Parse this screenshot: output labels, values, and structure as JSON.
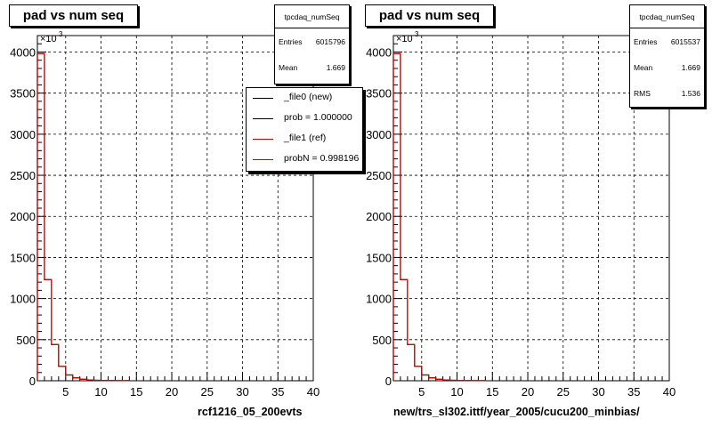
{
  "panels": [
    {
      "title": "pad vs num seq",
      "stats": {
        "name": "tpcdaq_numSeq",
        "rows": [
          {
            "label": "Entries",
            "value": "6015796"
          },
          {
            "label": "Mean",
            "value": "1.669"
          }
        ]
      },
      "legend": [
        {
          "label": "_file0 (new)",
          "color": "#000000"
        },
        {
          "label": "prob = 1.000000",
          "color": "#000000"
        },
        {
          "label": "_file1 (ref)",
          "color": "#cc0000"
        },
        {
          "label": "probN = 0.998196",
          "color": "#cc0000"
        }
      ],
      "footer": "rcf1216_05_200evts"
    },
    {
      "title": "pad vs num seq",
      "stats": {
        "name": "tpcdaq_numSeq",
        "rows": [
          {
            "label": "Entries",
            "value": "6015537"
          },
          {
            "label": "Mean",
            "value": "1.669"
          },
          {
            "label": "RMS",
            "value": "1.536"
          }
        ]
      },
      "footer": "new/trs_sl302.ittf/year_2005/cucu200_minbias/"
    }
  ],
  "chart_data": [
    {
      "type": "bar",
      "subtype": "histogram-step",
      "title": "pad vs num seq",
      "ylabel_multiplier": "×10",
      "ylabel_multiplier_exp": "3",
      "xlim": [
        1,
        40
      ],
      "ylim": [
        0,
        4200
      ],
      "xticks": [
        5,
        10,
        15,
        20,
        25,
        30,
        35,
        40
      ],
      "yticks": [
        0,
        500,
        1000,
        1500,
        2000,
        2500,
        3000,
        3500,
        4000
      ],
      "grid": true,
      "bin_edges": [
        1,
        2,
        3,
        4,
        5,
        6,
        7,
        8,
        9,
        10,
        11,
        12,
        13,
        14
      ],
      "series": [
        {
          "color": "#000000",
          "values": [
            3980,
            1230,
            440,
            175,
            70,
            35,
            18,
            10,
            6,
            4,
            3,
            2,
            1
          ]
        },
        {
          "color": "#cc0000",
          "values": [
            3980,
            1230,
            440,
            175,
            70,
            35,
            18,
            10,
            6,
            4,
            3,
            2,
            1
          ]
        }
      ]
    },
    {
      "type": "bar",
      "subtype": "histogram-step",
      "title": "pad vs num seq",
      "ylabel_multiplier": "×10",
      "ylabel_multiplier_exp": "3",
      "xlim": [
        1,
        40
      ],
      "ylim": [
        0,
        4200
      ],
      "xticks": [
        5,
        10,
        15,
        20,
        25,
        30,
        35,
        40
      ],
      "yticks": [
        0,
        500,
        1000,
        1500,
        2000,
        2500,
        3000,
        3500,
        4000
      ],
      "grid": true,
      "bin_edges": [
        1,
        2,
        3,
        4,
        5,
        6,
        7,
        8,
        9,
        10,
        11,
        12,
        13,
        14
      ],
      "series": [
        {
          "color": "#000000",
          "values": [
            3980,
            1230,
            440,
            175,
            70,
            35,
            18,
            10,
            6,
            4,
            3,
            2,
            1
          ]
        },
        {
          "color": "#cc0000",
          "values": [
            3980,
            1230,
            440,
            175,
            70,
            35,
            18,
            10,
            6,
            4,
            3,
            2,
            1
          ]
        }
      ]
    }
  ]
}
